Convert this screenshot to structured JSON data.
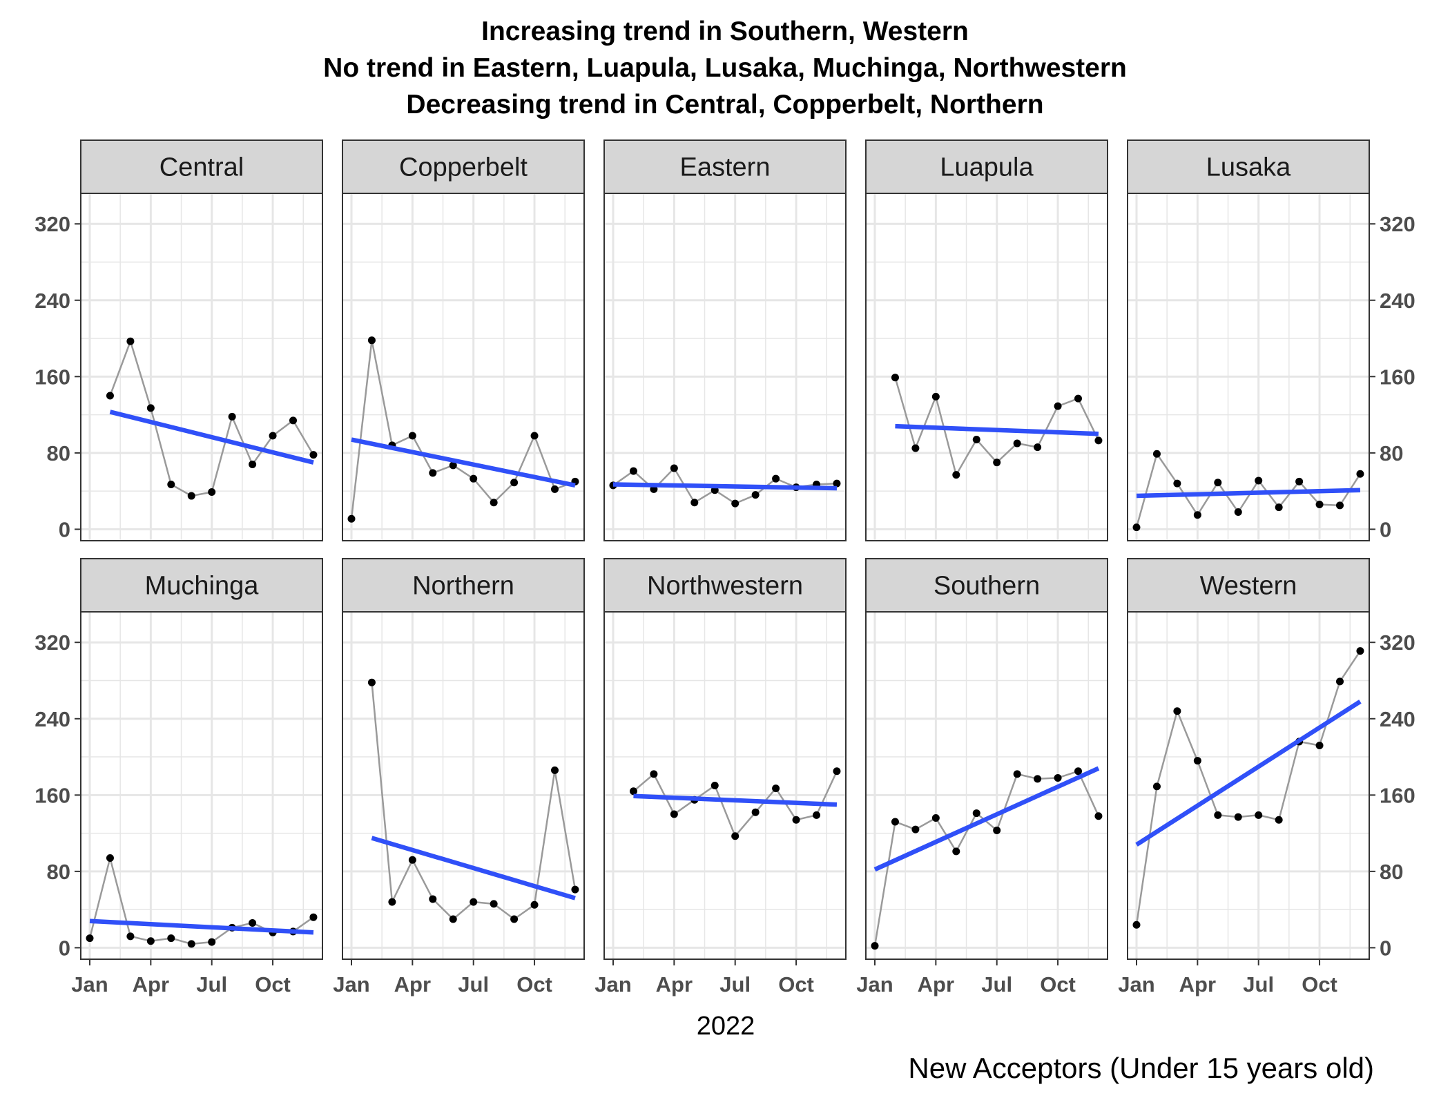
{
  "title_lines": [
    "Increasing trend in Southern, Western",
    "No trend in Eastern, Luapula, Lusaka, Muchinga, Northwestern",
    "Decreasing trend in Central, Copperbelt, Northern"
  ],
  "xlabel": "2022",
  "caption": "New Acceptors (Under 15 years old)",
  "colors": {
    "trend_line": "#3050f8",
    "raw_line": "#9a9a9a",
    "points": "#000000",
    "grid": "#e6e6e6",
    "strip_fill": "#d6d6d6",
    "panel_border": "#333333"
  },
  "chart_data": {
    "type": "line",
    "facet": "region",
    "grid": true,
    "x_months": [
      "Jan",
      "Feb",
      "Mar",
      "Apr",
      "May",
      "Jun",
      "Jul",
      "Aug",
      "Sep",
      "Oct",
      "Nov",
      "Dec"
    ],
    "x_tick_labels": [
      "Jan",
      "Apr",
      "Jul",
      "Oct"
    ],
    "y_ticks": [
      0,
      80,
      160,
      240,
      320
    ],
    "ylim": [
      -12,
      352
    ],
    "y_axis_left_rows": true,
    "y_axis_right_rows": true,
    "panels": [
      {
        "name": "Central",
        "values": [
          null,
          140,
          197,
          127,
          47,
          35,
          39,
          118,
          68,
          98,
          114,
          78
        ],
        "trend": {
          "from_month": 2,
          "to_month": 12,
          "start": 123,
          "end": 70
        }
      },
      {
        "name": "Copperbelt",
        "values": [
          11,
          198,
          88,
          98,
          59,
          67,
          53,
          28,
          49,
          98,
          42,
          50
        ],
        "trend": {
          "from_month": 1,
          "to_month": 12,
          "start": 94,
          "end": 46
        }
      },
      {
        "name": "Eastern",
        "values": [
          46,
          61,
          42,
          64,
          28,
          41,
          27,
          36,
          53,
          44,
          47,
          48
        ],
        "trend": {
          "from_month": 1,
          "to_month": 12,
          "start": 47,
          "end": 43
        }
      },
      {
        "name": "Luapula",
        "values": [
          null,
          159,
          85,
          139,
          57,
          94,
          70,
          90,
          86,
          129,
          137,
          93
        ],
        "trend": {
          "from_month": 2,
          "to_month": 12,
          "start": 108,
          "end": 100
        }
      },
      {
        "name": "Lusaka",
        "values": [
          2,
          79,
          48,
          15,
          49,
          18,
          51,
          23,
          50,
          26,
          25,
          58
        ],
        "trend": {
          "from_month": 1,
          "to_month": 12,
          "start": 35,
          "end": 41
        }
      },
      {
        "name": "Muchinga",
        "values": [
          10,
          94,
          12,
          7,
          10,
          4,
          6,
          21,
          26,
          16,
          17,
          32
        ],
        "trend": {
          "from_month": 1,
          "to_month": 12,
          "start": 28,
          "end": 16
        }
      },
      {
        "name": "Northern",
        "values": [
          null,
          278,
          48,
          92,
          51,
          30,
          48,
          46,
          30,
          45,
          186,
          61
        ],
        "trend": {
          "from_month": 2,
          "to_month": 12,
          "start": 115,
          "end": 52
        }
      },
      {
        "name": "Northwestern",
        "values": [
          null,
          164,
          182,
          140,
          155,
          170,
          117,
          142,
          167,
          134,
          139,
          185
        ],
        "trend": {
          "from_month": 2,
          "to_month": 12,
          "start": 159,
          "end": 150
        }
      },
      {
        "name": "Southern",
        "values": [
          2,
          132,
          124,
          136,
          101,
          141,
          123,
          182,
          177,
          178,
          185,
          138
        ],
        "trend": {
          "from_month": 1,
          "to_month": 12,
          "start": 82,
          "end": 188
        }
      },
      {
        "name": "Western",
        "values": [
          24,
          169,
          248,
          196,
          139,
          137,
          139,
          134,
          216,
          212,
          279,
          311
        ],
        "trend": {
          "from_month": 1,
          "to_month": 12,
          "start": 108,
          "end": 258
        }
      }
    ]
  }
}
